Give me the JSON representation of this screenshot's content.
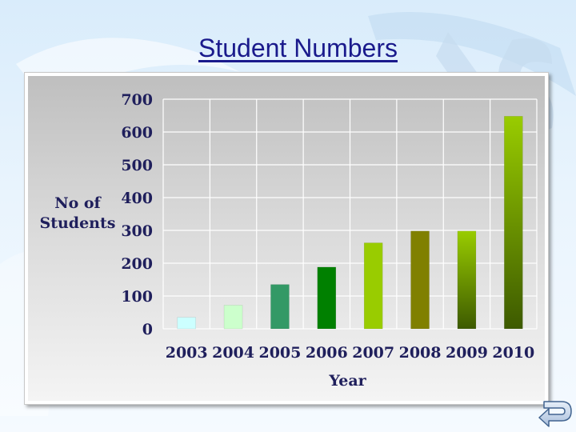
{
  "slide": {
    "title": "Student Numbers"
  },
  "icons": {
    "return": "return-arrow-icon"
  },
  "colors": {
    "title": "#1a1a8c",
    "axis_text": "#1f1f5c"
  },
  "chart_data": {
    "type": "bar",
    "title": "",
    "xlabel": "Year",
    "ylabel": "No of Students",
    "categories": [
      "2003",
      "2004",
      "2005",
      "2006",
      "2007",
      "2008",
      "2009",
      "2010"
    ],
    "values": [
      35,
      72,
      135,
      188,
      262,
      298,
      298,
      648
    ],
    "ylim": [
      0,
      700
    ],
    "yticks": [
      0,
      100,
      200,
      300,
      400,
      500,
      600,
      700
    ],
    "grid": true,
    "legend": "none",
    "bar_colors": [
      "#ccffff",
      "#ccffcc",
      "#339966",
      "#008000",
      "#99cc00",
      "#808000",
      "#99cc00",
      "#99cc00"
    ]
  }
}
